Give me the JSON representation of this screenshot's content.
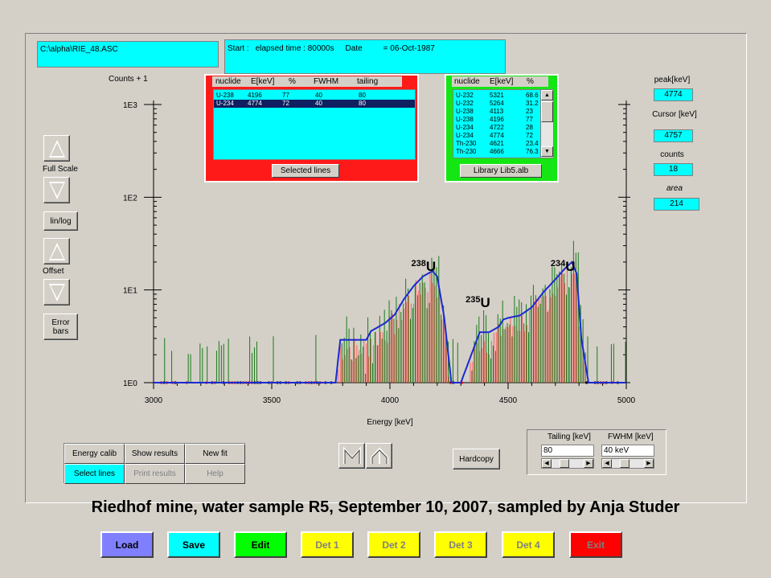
{
  "file_path": "C:\\alpha\\RIE_48.ASC",
  "info": {
    "start_label": "Start :",
    "elapsed": "elapsed time : 80000s",
    "date_label": "Date",
    "date_value": "= 06-Oct-1987"
  },
  "counts_label": "Counts + 1",
  "selected_panel": {
    "headers": [
      "nuclide",
      "E[keV]",
      "%",
      "FWHM",
      "tailing"
    ],
    "rows": [
      [
        "U-238",
        "4196",
        "77",
        "40",
        "80"
      ],
      [
        "U-234",
        "4774",
        "72",
        "40",
        "80"
      ]
    ],
    "button": "Selected lines"
  },
  "library_panel": {
    "headers": [
      "nuclide",
      "E[keV]",
      "%"
    ],
    "rows": [
      [
        "U-232",
        "5321",
        "68.6"
      ],
      [
        "U-232",
        "5264",
        "31.2"
      ],
      [
        "U-238",
        "4113",
        "23"
      ],
      [
        "U-238",
        "4196",
        "77"
      ],
      [
        "U-234",
        "4722",
        "28"
      ],
      [
        "U-234",
        "4774",
        "72"
      ],
      [
        "Th-230",
        "4621",
        "23.4"
      ],
      [
        "Th-230",
        "4666",
        "76.3"
      ]
    ],
    "button": "Library Lib5.alb"
  },
  "side": {
    "peak_label": "peak[keV]",
    "peak_value": "4774",
    "cursor_label": "Cursor [keV]",
    "cursor_value": "4757",
    "counts_label": "counts",
    "counts_value": "18",
    "area_label": "area",
    "area_value": "214"
  },
  "left_controls": {
    "full_scale": "Full Scale",
    "linlog": "lin/log",
    "offset": "Offset",
    "error_bars": "Error\nbars"
  },
  "chart_data": {
    "type": "line",
    "xlabel": "Energy [keV]",
    "ylabel": "Counts + 1",
    "xlim": [
      3000,
      5000
    ],
    "xticks": [
      3000,
      3500,
      4000,
      4500,
      5000
    ],
    "yscale": "log",
    "ylim": [
      1,
      1000
    ],
    "yticks": [
      "1E0",
      "1E1",
      "1E2",
      "1E3"
    ],
    "annotations": [
      {
        "text": "238",
        "suffix": "U",
        "x": 4090,
        "y": 16
      },
      {
        "text": "235",
        "suffix": "U",
        "x": 4320,
        "y": 6.5
      },
      {
        "text": "234",
        "suffix": "U",
        "x": 4680,
        "y": 16
      }
    ],
    "fit_curve": {
      "color": "#1a2ad0",
      "x": [
        3000,
        3770,
        3790,
        3900,
        3920,
        3980,
        4020,
        4060,
        4100,
        4140,
        4180,
        4200,
        4230,
        4260,
        4300,
        4380,
        4420,
        4460,
        4480,
        4500,
        4550,
        4600,
        4650,
        4700,
        4740,
        4770,
        4790,
        4810,
        4840,
        4990
      ],
      "y": [
        1,
        1,
        2.9,
        2.9,
        3.6,
        4.4,
        5.4,
        8,
        11,
        14,
        16,
        14,
        5,
        1,
        1,
        3.5,
        3.5,
        4,
        4.8,
        5,
        5.3,
        6.5,
        9.5,
        13,
        17,
        20,
        15,
        3,
        1,
        1
      ]
    },
    "measured_color": "#1a7a1a",
    "component_color": "#ff6060"
  },
  "bottom_group": {
    "energy_calib": "Energy calib",
    "show_results": "Show results",
    "new_fit": "New fit",
    "select_lines": "Select lines",
    "print_results": "Print results",
    "help": "Help"
  },
  "hardcopy": "Hardcopy",
  "tailing_fwhm": {
    "tailing_label": "Tailing [keV]",
    "tailing_value": "80",
    "fwhm_label": "FWHM [keV]",
    "fwhm_value": "40 keV"
  },
  "caption": "Riedhof mine, water sample R5, September 10, 2007, sampled by Anja Studer",
  "bottom_buttons": [
    {
      "label": "Load",
      "color": "#8080ff",
      "text": "#000"
    },
    {
      "label": "Save",
      "color": "#00ffff",
      "text": "#000"
    },
    {
      "label": "Edit",
      "color": "#00ff00",
      "text": "#000"
    },
    {
      "label": "Det 1",
      "color": "#ffff00",
      "text": "#808080"
    },
    {
      "label": "Det 2",
      "color": "#ffff00",
      "text": "#808080"
    },
    {
      "label": "Det 3",
      "color": "#ffff00",
      "text": "#808080"
    },
    {
      "label": "Det 4",
      "color": "#ffff00",
      "text": "#808080"
    },
    {
      "label": "Exit",
      "color": "#ff0000",
      "text": "#808080"
    }
  ]
}
